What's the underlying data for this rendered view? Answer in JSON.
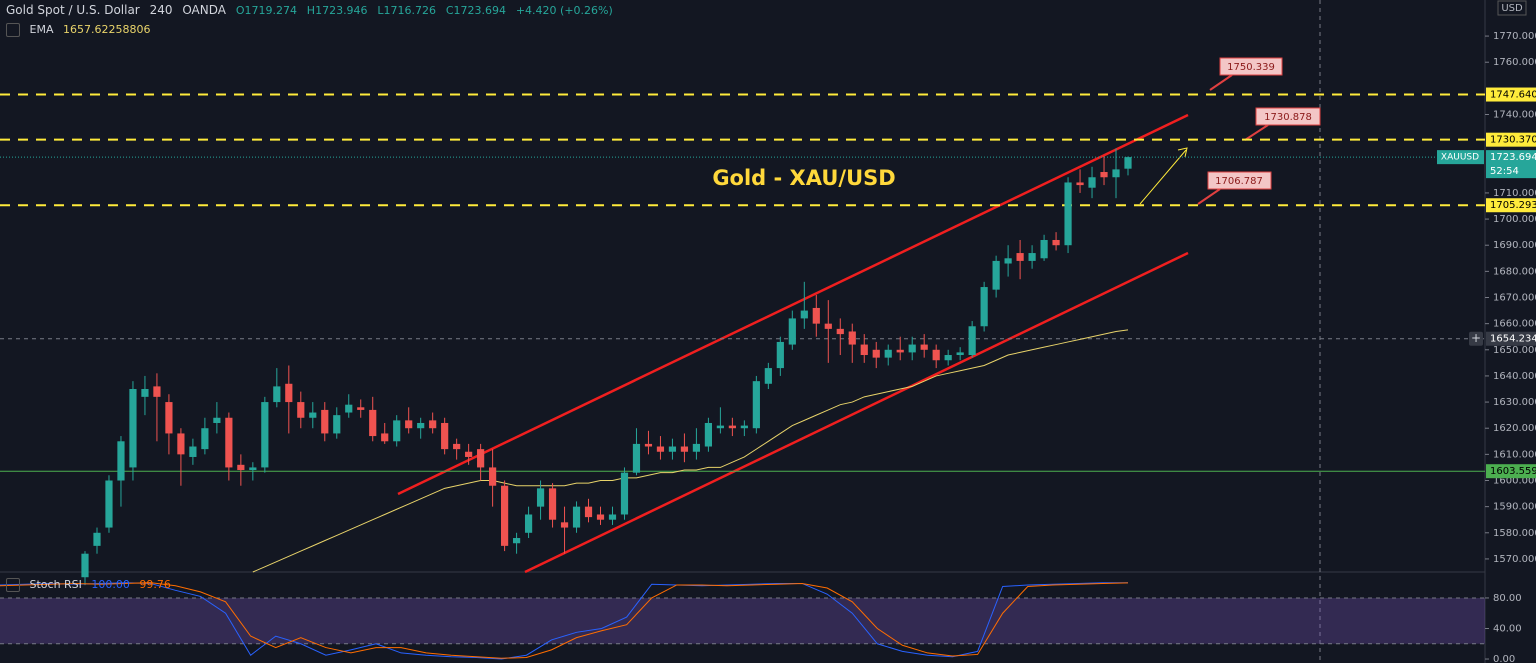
{
  "chart_data": {
    "type": "candlestick",
    "symbol": "Gold Spot / U.S. Dollar",
    "interval": "240",
    "exchange": "OANDA",
    "ohlc_text": [
      "O1719.274",
      "H1723.946",
      "L1716.726",
      "C1723.694"
    ],
    "change_text": "+4.420 (+0.26%)",
    "title": "Gold - XAU/USD",
    "currency": "USD",
    "up_color": "#26a69a",
    "down_color": "#ef5350",
    "open": [
      1563,
      1575,
      1582,
      1600,
      1605,
      1632,
      1636,
      1630,
      1618,
      1609,
      1612,
      1622,
      1624,
      1606,
      1604,
      1605,
      1630,
      1637,
      1630,
      1624,
      1627,
      1618,
      1626,
      1628,
      1627,
      1618,
      1615,
      1623,
      1620,
      1623,
      1622,
      1614,
      1611,
      1612,
      1605,
      1598,
      1576,
      1580,
      1590,
      1597,
      1584,
      1582,
      1590,
      1587,
      1585,
      1587,
      1603,
      1614,
      1613,
      1611,
      1613,
      1611,
      1613,
      1620,
      1621,
      1620,
      1620,
      1637,
      1643,
      1652,
      1662,
      1666,
      1660,
      1658,
      1657,
      1652,
      1650,
      1647,
      1650,
      1649,
      1652,
      1650,
      1646,
      1648,
      1648,
      1659,
      1673,
      1683,
      1687,
      1684,
      1685,
      1692,
      1690,
      1714,
      1712,
      1718,
      1716,
      1719.274
    ],
    "high": [
      1573,
      1582,
      1602,
      1617,
      1638,
      1640,
      1641,
      1633,
      1620,
      1616,
      1624,
      1630,
      1626,
      1610,
      1607,
      1632,
      1643,
      1644,
      1634,
      1630,
      1630,
      1628,
      1633,
      1631,
      1632,
      1622,
      1625,
      1628,
      1624,
      1626,
      1624,
      1616,
      1614,
      1614,
      1612,
      1600,
      1580,
      1590,
      1600,
      1599,
      1590,
      1592,
      1593,
      1590,
      1590,
      1605,
      1620,
      1619,
      1617,
      1616,
      1618,
      1620,
      1624,
      1628,
      1624,
      1623,
      1640,
      1645,
      1655,
      1665,
      1676,
      1671,
      1669,
      1662,
      1660,
      1656,
      1653,
      1652,
      1655,
      1655,
      1656,
      1652,
      1650,
      1651,
      1661,
      1676,
      1686,
      1690,
      1692,
      1690,
      1694,
      1695,
      1716,
      1719,
      1720,
      1724,
      1727,
      1723.946
    ],
    "low": [
      1560,
      1572,
      1580,
      1590,
      1600,
      1625,
      1615,
      1610,
      1598,
      1606,
      1610,
      1618,
      1600,
      1598,
      1600,
      1603,
      1628,
      1618,
      1620,
      1620,
      1615,
      1616,
      1624,
      1624,
      1615,
      1614,
      1613,
      1618,
      1616,
      1618,
      1610,
      1608,
      1606,
      1600,
      1590,
      1573,
      1572,
      1578,
      1585,
      1582,
      1572,
      1580,
      1584,
      1583,
      1583,
      1585,
      1602,
      1610,
      1608,
      1608,
      1607,
      1608,
      1611,
      1618,
      1617,
      1617,
      1618,
      1635,
      1640,
      1650,
      1658,
      1655,
      1645,
      1648,
      1645,
      1645,
      1643,
      1644,
      1646,
      1646,
      1647,
      1643,
      1644,
      1646,
      1647,
      1657,
      1670,
      1678,
      1677,
      1681,
      1684,
      1688,
      1687,
      1710,
      1708,
      1713,
      1708,
      1716.726
    ],
    "close": [
      1572,
      1580,
      1600,
      1615,
      1635,
      1635,
      1632,
      1618,
      1610,
      1613,
      1620,
      1624,
      1605,
      1604,
      1605,
      1630,
      1636,
      1630,
      1624,
      1626,
      1618,
      1625,
      1629,
      1627,
      1617,
      1615,
      1623,
      1620,
      1622,
      1620,
      1612,
      1612,
      1609,
      1605,
      1598,
      1575,
      1578,
      1587,
      1597,
      1585,
      1582,
      1590,
      1586,
      1585,
      1587,
      1603,
      1614,
      1613,
      1611,
      1613,
      1611,
      1614,
      1622,
      1621,
      1620,
      1621,
      1638,
      1643,
      1653,
      1662,
      1665,
      1660,
      1658,
      1656,
      1652,
      1648,
      1647,
      1650,
      1649,
      1652,
      1650,
      1646,
      1648,
      1649,
      1659,
      1674,
      1684,
      1685,
      1684,
      1687,
      1692,
      1690,
      1714,
      1713,
      1716,
      1716,
      1719,
      1723.694
    ],
    "ema": {
      "name": "EMA",
      "value_label": "1657.62258806",
      "color": "#e8d36a",
      "values": [
        null,
        null,
        null,
        null,
        null,
        null,
        null,
        null,
        null,
        null,
        null,
        null,
        null,
        null,
        1565,
        1567,
        1569,
        1571,
        1573,
        1575,
        1577,
        1579,
        1581,
        1583,
        1585,
        1587,
        1589,
        1591,
        1593,
        1595,
        1597,
        1598,
        1599,
        1600,
        1600,
        1599,
        1598,
        1598,
        1598,
        1598,
        1598,
        1599,
        1599,
        1600,
        1600,
        1601,
        1601,
        1602,
        1603,
        1603,
        1604,
        1604,
        1605,
        1605,
        1607,
        1609,
        1612,
        1615,
        1618,
        1621,
        1623,
        1625,
        1627,
        1629,
        1630,
        1632,
        1633,
        1634,
        1635,
        1636,
        1638,
        1640,
        1641,
        1642,
        1643,
        1644,
        1646,
        1648,
        1649,
        1650,
        1651,
        1652,
        1653,
        1654,
        1655,
        1656,
        1657,
        1657.62258806
      ]
    },
    "ylim": [
      1565,
      1783.8
    ],
    "yticks": [
      {
        "value": 1770,
        "label": "1770.000"
      },
      {
        "value": 1760,
        "label": "1760.000"
      },
      {
        "value": 1740,
        "label": "1740.000"
      },
      {
        "value": 1710,
        "label": "1710.000"
      },
      {
        "value": 1700,
        "label": "1700.000"
      },
      {
        "value": 1690,
        "label": "1690.000"
      },
      {
        "value": 1680,
        "label": "1680.000"
      },
      {
        "value": 1670,
        "label": "1670.000"
      },
      {
        "value": 1660,
        "label": "1660.000"
      },
      {
        "value": 1650,
        "label": "1650.000"
      },
      {
        "value": 1640,
        "label": "1640.000"
      },
      {
        "value": 1630,
        "label": "1630.000"
      },
      {
        "value": 1620,
        "label": "1620.000"
      },
      {
        "value": 1610,
        "label": "1610.000"
      },
      {
        "value": 1600,
        "label": "1600.000"
      },
      {
        "value": 1590,
        "label": "1590.000"
      },
      {
        "value": 1580,
        "label": "1580.000"
      },
      {
        "value": 1570,
        "label": "1570.000"
      }
    ],
    "levels": [
      {
        "value": 1747.64,
        "label": "1747.640",
        "color": "#ffeb3b"
      },
      {
        "value": 1730.37,
        "label": "1730.370",
        "color": "#ffeb3b"
      },
      {
        "value": 1705.293,
        "label": "1705.293",
        "color": "#ffeb3b"
      },
      {
        "value": 1603.559,
        "label": "1603.559",
        "color": "#4caf50"
      }
    ],
    "last_price": {
      "value": 1723.694,
      "label": "1723.694",
      "ticker": "XAUUSD",
      "countdown": "52:54",
      "color": "#26a69a"
    },
    "crosshair": {
      "value": 1654.234,
      "label": "1654.234"
    },
    "annotations": [
      "1750.339",
      "1730.878",
      "1706.787"
    ],
    "stoch": {
      "name": "Stoch RSI",
      "k_color": "#2962ff",
      "d_color": "#ff6d00",
      "k": [
        97,
        98,
        99,
        98,
        99,
        100,
        99,
        90,
        82,
        60,
        5,
        30,
        20,
        5,
        12,
        20,
        8,
        5,
        3,
        2,
        0,
        5,
        25,
        35,
        40,
        55,
        98,
        97,
        96,
        97,
        98,
        99,
        99,
        85,
        60,
        20,
        10,
        5,
        3,
        10,
        95,
        97,
        98,
        99,
        100,
        100
      ],
      "d": [
        96,
        97,
        98,
        99,
        98,
        99,
        100,
        96,
        88,
        75,
        30,
        15,
        28,
        15,
        8,
        15,
        15,
        8,
        5,
        3,
        1,
        2,
        12,
        28,
        37,
        45,
        80,
        97,
        97,
        96,
        97,
        98,
        99,
        93,
        75,
        40,
        18,
        8,
        4,
        6,
        60,
        95,
        97,
        98,
        99,
        99.76
      ],
      "value_labels": [
        "100.00",
        "99.76"
      ],
      "band": [
        20,
        80
      ],
      "ylim": [
        -5.2,
        114
      ],
      "yticks": [
        {
          "value": 80,
          "label": "80.00"
        },
        {
          "value": 40,
          "label": "40.00"
        },
        {
          "value": 0,
          "label": "0.00"
        }
      ]
    }
  }
}
